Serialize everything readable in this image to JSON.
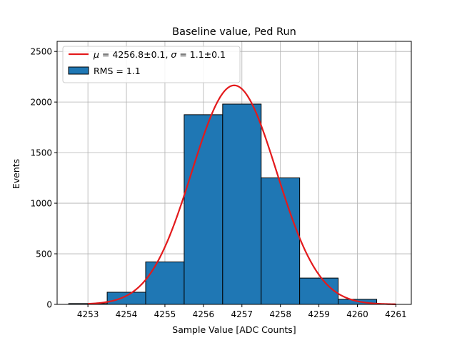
{
  "chart_data": {
    "type": "bar",
    "title": "Baseline value, Ped Run",
    "xlabel": "Sample Value [ADC Counts]",
    "ylabel": "Events",
    "xlim": [
      4252.2,
      4261.4
    ],
    "ylim": [
      0,
      2600
    ],
    "grid": true,
    "legend_position": "top-left",
    "x_ticks": [
      4253,
      4254,
      4255,
      4256,
      4257,
      4258,
      4259,
      4260,
      4261
    ],
    "y_ticks": [
      0,
      500,
      1000,
      1500,
      2000,
      2500
    ],
    "histogram": {
      "name": "RMS = 1.1",
      "color": "#1f77b4",
      "bin_edges": [
        4252.5,
        4253.5,
        4254.5,
        4255.5,
        4256.5,
        4257.5,
        4258.5,
        4259.5,
        4260.5
      ],
      "counts": [
        8,
        120,
        420,
        1875,
        1980,
        1250,
        260,
        50
      ]
    },
    "fit": {
      "name": "$\\mu = 4256.8 \\pm 0.1, \\sigma = 1.1 \\pm 0.1$",
      "color": "#e31a1c",
      "mu": 4256.8,
      "sigma": 1.1,
      "amplitude": 2165,
      "x_range": [
        4253,
        4261
      ]
    }
  }
}
